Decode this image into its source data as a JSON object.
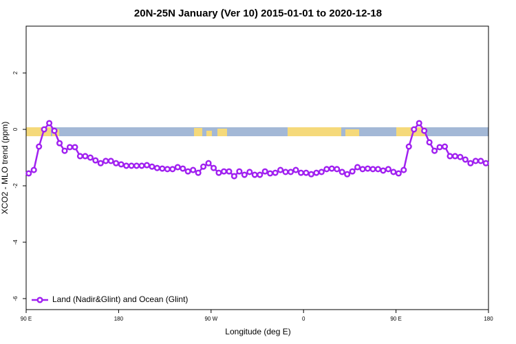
{
  "chart_data": {
    "type": "line",
    "title": "20N-25N January (Ver 10)   2015-01-01 to 2020-12-18",
    "x_label": "Longitude (deg E)",
    "y_label": "XCO2 - MLO trend (ppm)",
    "x": [
      92.5,
      97.5,
      102.5,
      107.5,
      112.5,
      117.5,
      122.5,
      127.5,
      132.5,
      137.5,
      142.5,
      147.5,
      152.5,
      157.5,
      162.5,
      167.5,
      172.5,
      177.5,
      182.5,
      187.5,
      192.5,
      197.5,
      202.5,
      207.5,
      212.5,
      217.5,
      222.5,
      227.5,
      232.5,
      237.5,
      242.5,
      247.5,
      252.5,
      257.5,
      262.5,
      267.5,
      272.5,
      277.5,
      282.5,
      287.5,
      292.5,
      297.5,
      302.5,
      307.5,
      312.5,
      317.5,
      322.5,
      327.5,
      332.5,
      337.5,
      342.5,
      347.5,
      352.5,
      357.5,
      362.5,
      367.5,
      372.5,
      377.5,
      382.5,
      387.5,
      392.5,
      397.5,
      402.5,
      407.5,
      412.5,
      417.5,
      422.5,
      427.5,
      432.5,
      437.5,
      442.5,
      447.5,
      452.5,
      457.5,
      462.5,
      467.5,
      472.5,
      477.5,
      482.5,
      487.5,
      492.5,
      497.5,
      502.5,
      507.5,
      512.5,
      517.5,
      522.5,
      527.5,
      532.5,
      537.5
    ],
    "series": [
      {
        "name": "Land (Nadir&Glint) and Ocean (Glint)",
        "color": "#a020f0",
        "values": [
          -1.56,
          -1.44,
          -0.61,
          0.0,
          0.22,
          -0.05,
          -0.49,
          -0.76,
          -0.63,
          -0.63,
          -0.95,
          -0.95,
          -1.0,
          -1.1,
          -1.2,
          -1.12,
          -1.12,
          -1.2,
          -1.24,
          -1.29,
          -1.29,
          -1.29,
          -1.29,
          -1.27,
          -1.32,
          -1.37,
          -1.39,
          -1.41,
          -1.41,
          -1.34,
          -1.39,
          -1.49,
          -1.44,
          -1.54,
          -1.32,
          -1.2,
          -1.37,
          -1.54,
          -1.49,
          -1.49,
          -1.66,
          -1.49,
          -1.61,
          -1.51,
          -1.61,
          -1.61,
          -1.49,
          -1.56,
          -1.54,
          -1.44,
          -1.51,
          -1.51,
          -1.44,
          -1.54,
          -1.54,
          -1.59,
          -1.54,
          -1.51,
          -1.41,
          -1.39,
          -1.41,
          -1.51,
          -1.59,
          -1.49,
          -1.34,
          -1.41,
          -1.39,
          -1.41,
          -1.41,
          -1.46,
          -1.41,
          -1.51,
          -1.56,
          -1.44,
          -0.61,
          0.0,
          0.22,
          -0.05,
          -0.46,
          -0.76,
          -0.63,
          -0.61,
          -0.95,
          -0.95,
          -0.98,
          -1.07,
          -1.2,
          -1.12,
          -1.12,
          -1.2
        ]
      }
    ],
    "xlim": [
      90,
      540
    ],
    "xticks": [
      {
        "value": 90,
        "label": "90 E"
      },
      180,
      {
        "value": 270,
        "label": "90 W"
      },
      {
        "value": 360,
        "label": "0"
      },
      {
        "value": 450,
        "label": "90 E"
      },
      {
        "value": 540,
        "label": "180"
      }
    ],
    "ylim": [
      -6.39,
      3.66
    ],
    "yticks": [
      -6,
      -4,
      -2,
      0,
      2
    ],
    "legend": "bottomleft"
  }
}
